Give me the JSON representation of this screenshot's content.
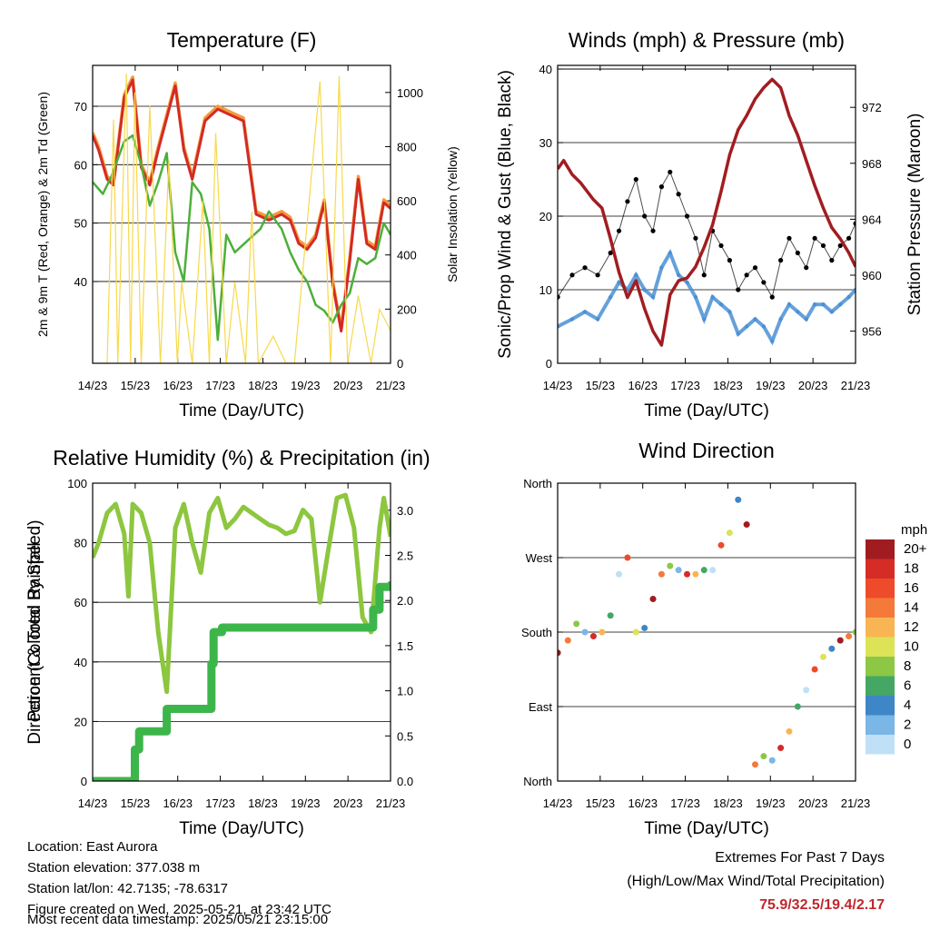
{
  "x_ticks": [
    "14/23",
    "15/23",
    "16/23",
    "17/23",
    "18/23",
    "19/23",
    "20/23",
    "21/23"
  ],
  "chart_data": [
    {
      "type": "line",
      "title": "Temperature (F)",
      "xlabel": "Time (Day/UTC)",
      "ylabel": "2m & 9m T (Red, Orange) & 2m Td (Green)",
      "ylabel_right": "Solar Insolation (Yellow)",
      "ylim": [
        26,
        77
      ],
      "yticks": [
        40,
        50,
        60,
        70
      ],
      "ylim_right": [
        0,
        1100
      ],
      "yticks_right": [
        0,
        200,
        400,
        600,
        800,
        1000
      ],
      "x_day_range": [
        14.9583,
        21.9583
      ],
      "series": [
        {
          "key": "temp_9m",
          "color": "#f29b3b",
          "width": 3.5,
          "x": [
            14.96,
            15.1,
            15.3,
            15.45,
            15.7,
            15.9,
            16.1,
            16.3,
            16.5,
            16.9,
            17.1,
            17.3,
            17.6,
            17.9,
            18.2,
            18.5,
            18.8,
            19.1,
            19.4,
            19.6,
            19.8,
            20.0,
            20.2,
            20.4,
            20.6,
            20.8,
            21.0,
            21.2,
            21.4,
            21.6,
            21.8,
            21.96
          ],
          "values": [
            65.5,
            63,
            58,
            57,
            72,
            75,
            60,
            57,
            63,
            74,
            63,
            58,
            68,
            70,
            69,
            68,
            52,
            51,
            52,
            51,
            47,
            46,
            48,
            54,
            40,
            32,
            44,
            58,
            47,
            46,
            54,
            53
          ]
        },
        {
          "key": "temp_2m",
          "color": "#d42a25",
          "width": 3,
          "x": [
            14.96,
            15.1,
            15.3,
            15.45,
            15.7,
            15.9,
            16.1,
            16.3,
            16.5,
            16.9,
            17.1,
            17.3,
            17.6,
            17.9,
            18.2,
            18.5,
            18.8,
            19.1,
            19.4,
            19.6,
            19.8,
            20.0,
            20.2,
            20.4,
            20.6,
            20.8,
            21.0,
            21.2,
            21.4,
            21.6,
            21.8,
            21.96
          ],
          "values": [
            65,
            62.5,
            57.5,
            56.5,
            71.5,
            74.5,
            59.5,
            56.5,
            62.5,
            73.5,
            62.5,
            57.5,
            67.5,
            69.5,
            68.5,
            67.5,
            51.5,
            50.5,
            51.5,
            50.5,
            46.5,
            45.5,
            47.5,
            53.5,
            39.5,
            31.5,
            43.5,
            57.5,
            46.5,
            45.5,
            53.5,
            52.5
          ]
        },
        {
          "key": "dewpoint_2m",
          "color": "#4caf3a",
          "width": 2.5,
          "x": [
            14.96,
            15.2,
            15.4,
            15.7,
            15.9,
            16.1,
            16.3,
            16.5,
            16.7,
            16.9,
            17.1,
            17.3,
            17.5,
            17.7,
            17.9,
            18.1,
            18.3,
            18.6,
            18.9,
            19.1,
            19.4,
            19.6,
            19.8,
            20.0,
            20.2,
            20.4,
            20.6,
            20.8,
            21.0,
            21.2,
            21.4,
            21.6,
            21.8,
            21.96
          ],
          "values": [
            57,
            55,
            58,
            64,
            65,
            60,
            53,
            57,
            62,
            45,
            40,
            57,
            55,
            49,
            30,
            48,
            45,
            47,
            49,
            52,
            49,
            45,
            42,
            40,
            36,
            35,
            33,
            36,
            38,
            44,
            43,
            44,
            50,
            48
          ]
        },
        {
          "key": "solar",
          "axis": "right",
          "color": "#f7d94c",
          "width": 1,
          "x": [
            14.96,
            15.3,
            15.45,
            15.55,
            15.75,
            15.85,
            15.95,
            16.1,
            16.3,
            16.55,
            16.75,
            16.95,
            17.05,
            17.3,
            17.55,
            17.7,
            17.85,
            18.1,
            18.3,
            18.55,
            18.7,
            18.85,
            19.2,
            19.5,
            19.7,
            20.3,
            20.55,
            20.75,
            20.95,
            21.2,
            21.5,
            21.7,
            21.96
          ],
          "values": [
            0,
            0,
            900,
            0,
            1070,
            0,
            1000,
            0,
            950,
            0,
            750,
            0,
            300,
            0,
            600,
            0,
            850,
            0,
            300,
            0,
            560,
            0,
            100,
            0,
            0,
            1040,
            0,
            1060,
            0,
            250,
            0,
            200,
            120
          ]
        }
      ]
    },
    {
      "type": "scatter",
      "title": "Winds (mph) & Pressure (mb)",
      "xlabel": "Time (Day/UTC)",
      "ylabel": "Sonic/Prop Wind & Gust (Blue, Black)",
      "ylabel_right": "Station Pressure (Maroon)",
      "ylim": [
        0,
        40.5
      ],
      "yticks": [
        0,
        10,
        20,
        30,
        40
      ],
      "ylim_right": [
        953.7,
        975
      ],
      "yticks_right": [
        956,
        960,
        964,
        968,
        972
      ],
      "x_day_range": [
        14.9583,
        21.9583
      ],
      "series": [
        {
          "key": "gust",
          "color": "#000000",
          "x": [
            14.96,
            15.3,
            15.6,
            15.9,
            16.2,
            16.4,
            16.6,
            16.8,
            17.0,
            17.2,
            17.4,
            17.6,
            17.8,
            18.0,
            18.2,
            18.4,
            18.6,
            18.8,
            19.0,
            19.2,
            19.4,
            19.6,
            19.8,
            20.0,
            20.2,
            20.4,
            20.6,
            20.8,
            21.0,
            21.2,
            21.4,
            21.6,
            21.8,
            21.96
          ],
          "values": [
            9,
            12,
            13,
            12,
            15,
            18,
            22,
            25,
            20,
            18,
            24,
            26,
            23,
            20,
            17,
            12,
            18,
            16,
            14,
            10,
            12,
            13,
            11,
            9,
            14,
            17,
            15,
            13,
            17,
            16,
            14,
            16,
            17,
            19
          ]
        },
        {
          "key": "sonic_wind",
          "color": "#4a90d4",
          "x": [
            14.96,
            15.3,
            15.6,
            15.9,
            16.2,
            16.4,
            16.6,
            16.8,
            17.0,
            17.2,
            17.4,
            17.6,
            17.8,
            18.0,
            18.2,
            18.4,
            18.6,
            18.8,
            19.0,
            19.2,
            19.4,
            19.6,
            19.8,
            20.0,
            20.2,
            20.4,
            20.6,
            20.8,
            21.0,
            21.2,
            21.4,
            21.6,
            21.8,
            21.96
          ],
          "values": [
            5,
            6,
            7,
            6,
            9,
            11,
            10,
            12,
            10,
            9,
            13,
            15,
            12,
            11,
            9,
            6,
            9,
            8,
            7,
            4,
            5,
            6,
            5,
            3,
            6,
            8,
            7,
            6,
            8,
            8,
            7,
            8,
            9,
            10
          ]
        },
        {
          "key": "pressure",
          "axis": "right",
          "color": "#a11d21",
          "x": [
            14.96,
            15.1,
            15.3,
            15.5,
            15.8,
            16.0,
            16.2,
            16.4,
            16.6,
            16.8,
            17.0,
            17.2,
            17.4,
            17.6,
            17.8,
            18.0,
            18.2,
            18.4,
            18.6,
            18.8,
            19.0,
            19.2,
            19.4,
            19.6,
            19.8,
            20.0,
            20.2,
            20.4,
            20.6,
            20.8,
            21.0,
            21.2,
            21.4,
            21.6,
            21.8,
            21.96
          ],
          "values": [
            967.6,
            968.2,
            967.2,
            966.6,
            965.4,
            964.8,
            962.6,
            960.2,
            958.4,
            959.6,
            957.6,
            956.0,
            955.0,
            958.6,
            959.6,
            959.8,
            960.6,
            962.0,
            963.6,
            966.0,
            968.6,
            970.4,
            971.4,
            972.6,
            973.4,
            974.0,
            973.4,
            971.4,
            970.0,
            968.2,
            966.4,
            964.8,
            963.4,
            962.6,
            961.6,
            960.6
          ]
        }
      ]
    },
    {
      "type": "line",
      "title": "Relative Humidity (%) & Precipitation (in)",
      "xlabel": "Time (Day/UTC)",
      "ylabel": "Percent & Total Rainfall",
      "ylim": [
        0,
        100
      ],
      "yticks": [
        0,
        20,
        40,
        60,
        80,
        100
      ],
      "ylim_right": [
        0,
        3.3
      ],
      "yticks_right": [
        "0.0",
        "0.5",
        "1.0",
        "1.5",
        "2.0",
        "2.5",
        "3.0"
      ],
      "x_day_range": [
        14.9583,
        21.9583
      ],
      "series": [
        {
          "key": "rh",
          "name": "",
          "color": "#8dc63f",
          "x": [
            14.96,
            15.1,
            15.3,
            15.5,
            15.7,
            15.8,
            15.9,
            16.1,
            16.3,
            16.5,
            16.7,
            16.9,
            17.1,
            17.3,
            17.5,
            17.7,
            17.9,
            18.1,
            18.3,
            18.5,
            18.7,
            18.9,
            19.1,
            19.3,
            19.5,
            19.7,
            19.9,
            20.1,
            20.3,
            20.5,
            20.7,
            20.9,
            21.1,
            21.3,
            21.5,
            21.7,
            21.8,
            21.96
          ],
          "values": [
            75,
            80,
            90,
            93,
            83,
            62,
            93,
            90,
            80,
            50,
            30,
            85,
            93,
            80,
            70,
            90,
            95,
            85,
            88,
            92,
            90,
            88,
            86,
            85,
            83,
            84,
            91,
            88,
            60,
            78,
            95,
            96,
            85,
            55,
            50,
            85,
            95,
            82
          ]
        },
        {
          "key": "precip",
          "axis": "right",
          "name": "",
          "color": "#3cb64a",
          "x": [
            14.96,
            15.9,
            15.95,
            16.05,
            16.6,
            16.7,
            17.7,
            17.75,
            17.8,
            18.0,
            21.4,
            21.55,
            21.7,
            21.96
          ],
          "values": [
            0,
            0,
            0.35,
            0.55,
            0.55,
            0.8,
            0.8,
            1.3,
            1.65,
            1.7,
            1.7,
            1.9,
            2.15,
            2.17
          ]
        }
      ]
    },
    {
      "type": "scatter",
      "title": "Wind Direction",
      "xlabel": "Time (Day/UTC)",
      "ylabel": "Direction (Colored By Speed)",
      "ylim": [
        0,
        360
      ],
      "ytick_labels": [
        "North",
        "East",
        "South",
        "West",
        "North"
      ],
      "yticks": [
        0,
        90,
        180,
        270,
        360
      ],
      "x_day_range": [
        14.9583,
        21.9583
      ],
      "legend": {
        "unit": "mph",
        "labels": [
          "20+",
          "18",
          "16",
          "14",
          "12",
          "10",
          "8",
          "6",
          "4",
          "2",
          "0"
        ],
        "colors": [
          "#a01c20",
          "#d52c26",
          "#ee4b2b",
          "#f47a3a",
          "#f9b553",
          "#dce357",
          "#8cc846",
          "#44a763",
          "#3e86c5",
          "#7ab6e6",
          "#bfe0f6"
        ]
      },
      "series": [
        {
          "key": "direction",
          "color": "#3e86c5",
          "x": [
            14.96,
            15.2,
            15.4,
            15.6,
            15.8,
            16.0,
            16.2,
            16.4,
            16.6,
            16.8,
            17.0,
            17.2,
            17.4,
            17.6,
            17.8,
            18.0,
            18.2,
            18.4,
            18.6,
            18.8,
            19.0,
            19.2,
            19.4,
            19.6,
            19.8,
            20.0,
            20.2,
            20.4,
            20.6,
            20.8,
            21.0,
            21.2,
            21.4,
            21.6,
            21.8,
            21.96
          ],
          "values": [
            155,
            170,
            190,
            180,
            175,
            180,
            200,
            250,
            270,
            180,
            185,
            220,
            250,
            260,
            255,
            250,
            250,
            255,
            255,
            285,
            300,
            340,
            310,
            20,
            30,
            25,
            40,
            60,
            90,
            110,
            135,
            150,
            160,
            170,
            175,
            180
          ]
        }
      ]
    }
  ],
  "footer": {
    "location": "Location: East Aurora",
    "elevation": "Station elevation: 377.038 m",
    "latlon": "Station lat/lon: 42.7135; -78.6317",
    "created": "Figure created on Wed, 2025-05-21, at 23:42 UTC",
    "latest": "Most recent data timestamp: 2025/05/21 23:15:00",
    "extremes_title": "Extremes For Past 7 Days",
    "extremes_legend": "(High/Low/Max Wind/Total Precipitation)",
    "extremes_values": "75.9/32.5/19.4/2.17"
  },
  "colors": {
    "grid": "#000000",
    "ink": "#000000",
    "extremes": "#c0272d"
  }
}
